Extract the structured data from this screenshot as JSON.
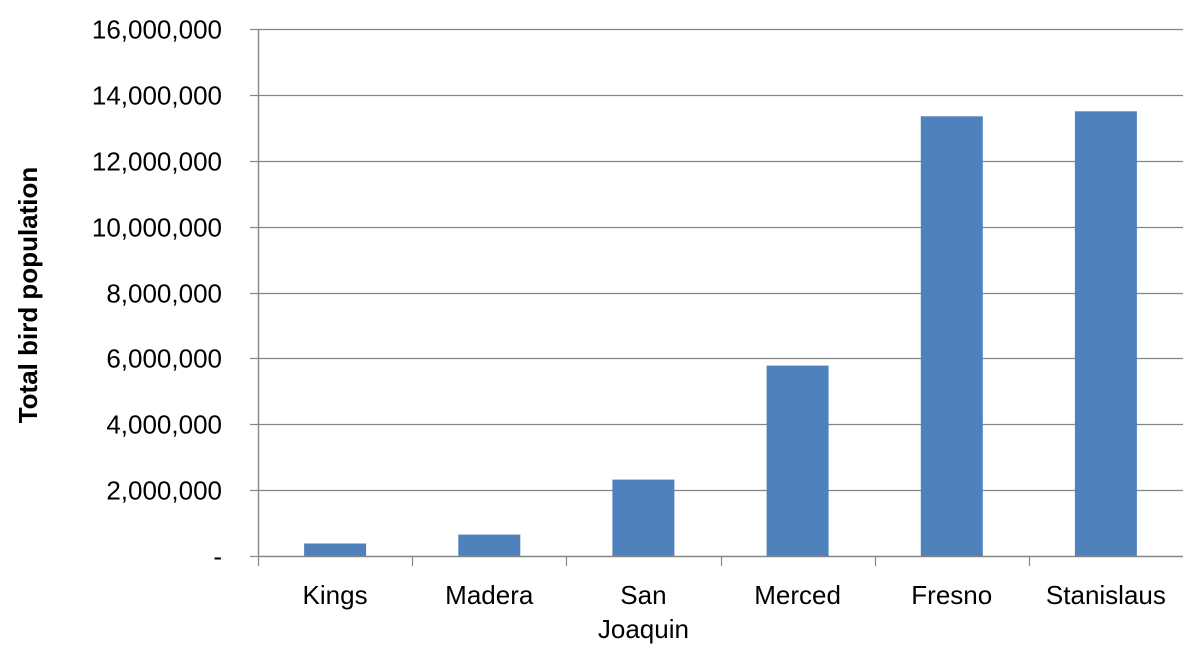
{
  "chart_data": {
    "type": "bar",
    "title": "",
    "xlabel": "",
    "ylabel": "Total bird population",
    "categories": [
      "Kings",
      "Madera",
      "San Joaquin",
      "Merced",
      "Fresno",
      "Stanislaus"
    ],
    "category_lines": [
      [
        "Kings"
      ],
      [
        "Madera"
      ],
      [
        "San",
        "Joaquin"
      ],
      [
        "Merced"
      ],
      [
        "Fresno"
      ],
      [
        "Stanislaus"
      ]
    ],
    "values": [
      380000,
      650000,
      2320000,
      5780000,
      13350000,
      13500000
    ],
    "ylim": [
      0,
      16000000
    ],
    "yticks": [
      0,
      2000000,
      4000000,
      6000000,
      8000000,
      10000000,
      12000000,
      14000000,
      16000000
    ],
    "ytick_labels": [
      "-",
      "2,000,000",
      "4,000,000",
      "6,000,000",
      "8,000,000",
      "10,000,000",
      "12,000,000",
      "14,000,000",
      "16,000,000"
    ],
    "grid": true,
    "legend": "none",
    "bar_color": "#4f81bd",
    "grid_color": "#868686",
    "axis_color": "#868686"
  }
}
